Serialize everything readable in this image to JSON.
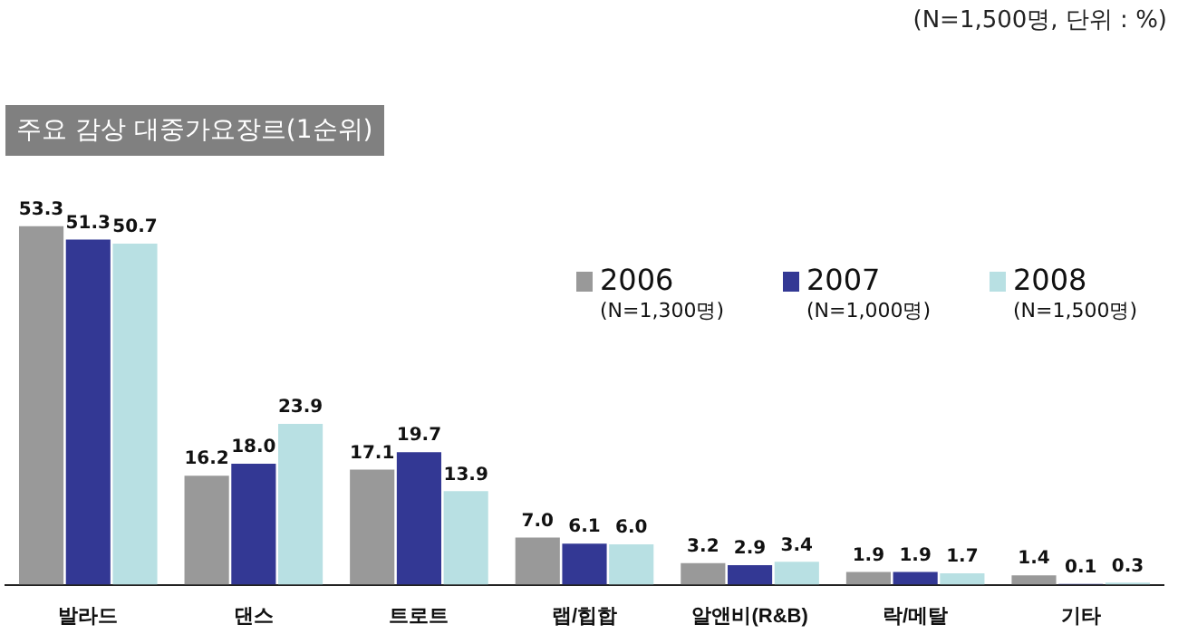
{
  "chart_data": {
    "type": "bar",
    "title": "주요 감상 대중가요장르(1순위)",
    "annotations": [
      "(N=1,500명, 단위 : %)"
    ],
    "categories": [
      "발라드",
      "댄스",
      "트로트",
      "랩/힙합",
      "알앤비(R&B)",
      "락/메탈",
      "기타"
    ],
    "series": [
      {
        "name": "2006 (N=1,300명)",
        "color": "#999999",
        "values": [
          53.3,
          16.2,
          17.1,
          7.0,
          3.2,
          1.9,
          1.4
        ],
        "value_labels": [
          "53.3",
          "16.2",
          "17.1",
          "7.0",
          "3.2",
          "1.9",
          "1.4"
        ]
      },
      {
        "name": "2007 (N=1,000명)",
        "color": "#333894",
        "values": [
          51.3,
          18.0,
          19.7,
          6.1,
          2.9,
          1.9,
          0.1
        ],
        "value_labels": [
          "51.3",
          "18.0",
          "19.7",
          "6.1",
          "2.9",
          "1.9",
          "0.1"
        ]
      },
      {
        "name": "2008 (N=1,500명)",
        "color": "#b8e0e3",
        "values": [
          50.7,
          23.9,
          13.9,
          6.0,
          3.4,
          1.7,
          0.3
        ],
        "value_labels": [
          "50.7",
          "23.9",
          "13.9",
          "6.0",
          "3.4",
          "1.7",
          "0.3"
        ]
      }
    ],
    "legend": "top right",
    "grid": false,
    "tick_labels": "x"
  }
}
